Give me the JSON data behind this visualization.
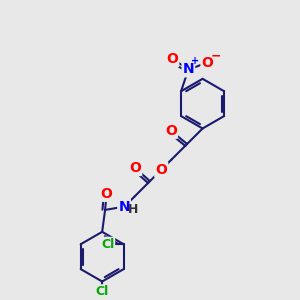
{
  "background_color": "#e8e8e8",
  "atom_colors": {
    "O": "#ff0000",
    "N": "#0000ff",
    "Cl": "#00aa00",
    "C": "#000000",
    "H": "#333333"
  },
  "bond_color": "#1a1a6e",
  "bond_width": 1.5,
  "font_size_atom": 9,
  "fig_width": 3.0,
  "fig_height": 3.0,
  "dpi": 100
}
